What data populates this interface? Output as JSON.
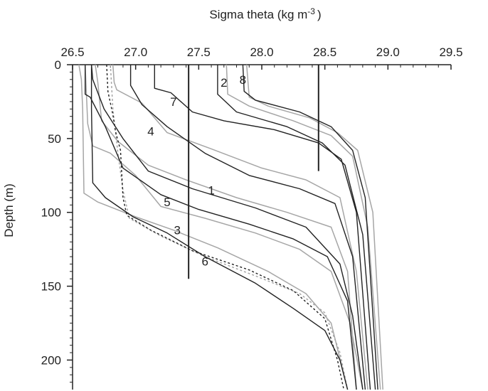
{
  "chart_data": {
    "type": "line",
    "title": "",
    "xlabel": "Sigma theta (kg m",
    "xlabel_sup": "-3",
    "xlabel_close": ")",
    "ylabel": "Depth (m)",
    "x_axis_position": "top",
    "y_inverted": true,
    "xlim": [
      26.5,
      29.5
    ],
    "ylim": [
      0,
      220
    ],
    "xticks": [
      "26.5",
      "27.0",
      "27.5",
      "28.0",
      "28.5",
      "29.0",
      "29.5"
    ],
    "yticks": [
      "0",
      "50",
      "100",
      "150",
      "200"
    ],
    "grid": false,
    "legend": "none",
    "colors": {
      "dark": "#222222",
      "light": "#a6a6a6"
    },
    "reference_lines": [
      {
        "x": 27.42,
        "y_range": [
          0,
          145
        ]
      },
      {
        "x": 28.45,
        "y_range": [
          0,
          72
        ]
      }
    ],
    "profile_labels": [
      {
        "text": "2",
        "x": 27.7,
        "y": 12
      },
      {
        "text": "8",
        "x": 27.85,
        "y": 10
      },
      {
        "text": "7",
        "x": 27.3,
        "y": 25
      },
      {
        "text": "4",
        "x": 27.12,
        "y": 45
      },
      {
        "text": "1",
        "x": 27.6,
        "y": 85
      },
      {
        "text": "5",
        "x": 27.25,
        "y": 93
      },
      {
        "text": "3",
        "x": 27.33,
        "y": 112
      },
      {
        "text": "6",
        "x": 27.55,
        "y": 133
      }
    ],
    "series": [
      {
        "color": "dark",
        "dash": false,
        "points": [
          [
            26.65,
            0
          ],
          [
            26.65,
            30
          ],
          [
            26.66,
            80
          ],
          [
            26.76,
            90
          ],
          [
            26.98,
            103
          ],
          [
            27.25,
            114
          ],
          [
            27.55,
            130
          ],
          [
            27.95,
            148
          ],
          [
            28.25,
            165
          ],
          [
            28.5,
            180
          ],
          [
            28.62,
            200
          ],
          [
            28.68,
            220
          ]
        ]
      },
      {
        "color": "dark",
        "dash": false,
        "points": [
          [
            26.6,
            0
          ],
          [
            26.6,
            20
          ],
          [
            26.64,
            22
          ],
          [
            26.76,
            42
          ],
          [
            26.9,
            70
          ],
          [
            27.2,
            88
          ],
          [
            27.5,
            98
          ],
          [
            27.9,
            108
          ],
          [
            28.25,
            118
          ],
          [
            28.52,
            130
          ],
          [
            28.68,
            160
          ],
          [
            28.75,
            220
          ]
        ]
      },
      {
        "color": "dark",
        "dash": false,
        "points": [
          [
            26.65,
            0
          ],
          [
            26.66,
            10
          ],
          [
            26.75,
            30
          ],
          [
            26.9,
            50
          ],
          [
            27.1,
            72
          ],
          [
            27.45,
            84
          ],
          [
            27.95,
            97
          ],
          [
            28.35,
            110
          ],
          [
            28.62,
            135
          ],
          [
            28.72,
            170
          ],
          [
            28.8,
            220
          ]
        ]
      },
      {
        "color": "dark",
        "dash": false,
        "points": [
          [
            26.96,
            0
          ],
          [
            26.96,
            14
          ],
          [
            27.05,
            27
          ],
          [
            27.25,
            42
          ],
          [
            27.55,
            60
          ],
          [
            27.9,
            75
          ],
          [
            28.3,
            84
          ],
          [
            28.58,
            94
          ],
          [
            28.72,
            130
          ],
          [
            28.82,
            220
          ]
        ]
      },
      {
        "color": "dark",
        "dash": false,
        "points": [
          [
            27.15,
            0
          ],
          [
            27.15,
            16
          ],
          [
            27.28,
            19
          ],
          [
            27.45,
            32
          ],
          [
            27.7,
            38
          ],
          [
            28.1,
            44
          ],
          [
            28.45,
            53
          ],
          [
            28.63,
            64
          ],
          [
            28.75,
            100
          ],
          [
            28.86,
            220
          ]
        ]
      },
      {
        "color": "dark",
        "dash": false,
        "points": [
          [
            27.65,
            0
          ],
          [
            27.65,
            20
          ],
          [
            27.8,
            32
          ],
          [
            28.2,
            42
          ],
          [
            28.48,
            53
          ],
          [
            28.66,
            68
          ],
          [
            28.8,
            115
          ],
          [
            28.9,
            220
          ]
        ]
      },
      {
        "color": "dark",
        "dash": false,
        "points": [
          [
            27.85,
            0
          ],
          [
            27.86,
            18
          ],
          [
            27.95,
            24
          ],
          [
            28.3,
            32
          ],
          [
            28.55,
            42
          ],
          [
            28.72,
            58
          ],
          [
            28.82,
            90
          ],
          [
            28.92,
            220
          ]
        ]
      },
      {
        "color": "dark",
        "dash": true,
        "points": [
          [
            26.77,
            0
          ],
          [
            26.78,
            18
          ],
          [
            26.82,
            34
          ],
          [
            26.84,
            45
          ],
          [
            26.88,
            58
          ],
          [
            26.9,
            90
          ],
          [
            26.93,
            102
          ],
          [
            27.12,
            112
          ],
          [
            27.45,
            126
          ],
          [
            27.9,
            139
          ],
          [
            28.25,
            153
          ],
          [
            28.5,
            172
          ],
          [
            28.6,
            200
          ],
          [
            28.65,
            220
          ]
        ]
      },
      {
        "color": "light",
        "dash": false,
        "points": [
          [
            26.55,
            0
          ],
          [
            26.57,
            10
          ],
          [
            26.58,
            30
          ],
          [
            26.59,
            87
          ],
          [
            26.7,
            93
          ],
          [
            27.0,
            103
          ],
          [
            27.3,
            112
          ],
          [
            27.65,
            124
          ],
          [
            28.05,
            140
          ],
          [
            28.35,
            155
          ],
          [
            28.55,
            175
          ],
          [
            28.68,
            220
          ]
        ]
      },
      {
        "color": "light",
        "dash": false,
        "points": [
          [
            26.68,
            0
          ],
          [
            26.7,
            12
          ],
          [
            26.73,
            38
          ],
          [
            26.86,
            52
          ],
          [
            27.1,
            68
          ],
          [
            27.4,
            78
          ],
          [
            27.8,
            90
          ],
          [
            28.2,
            100
          ],
          [
            28.55,
            110
          ],
          [
            28.68,
            140
          ],
          [
            28.75,
            220
          ]
        ]
      },
      {
        "color": "light",
        "dash": false,
        "points": [
          [
            26.82,
            0
          ],
          [
            26.83,
            12
          ],
          [
            26.85,
            17
          ],
          [
            27.05,
            26
          ],
          [
            27.25,
            46
          ],
          [
            27.6,
            57
          ],
          [
            28.0,
            70
          ],
          [
            28.35,
            78
          ],
          [
            28.62,
            90
          ],
          [
            28.75,
            140
          ],
          [
            28.84,
            220
          ]
        ]
      },
      {
        "color": "light",
        "dash": false,
        "points": [
          [
            27.72,
            0
          ],
          [
            27.73,
            20
          ],
          [
            27.9,
            28
          ],
          [
            28.25,
            38
          ],
          [
            28.55,
            48
          ],
          [
            28.72,
            62
          ],
          [
            28.84,
            110
          ],
          [
            28.94,
            220
          ]
        ]
      },
      {
        "color": "light",
        "dash": false,
        "points": [
          [
            27.88,
            0
          ],
          [
            27.9,
            22
          ],
          [
            28.05,
            28
          ],
          [
            28.38,
            36
          ],
          [
            28.6,
            46
          ],
          [
            28.76,
            58
          ],
          [
            28.88,
            100
          ],
          [
            28.96,
            220
          ]
        ]
      },
      {
        "color": "light",
        "dash": false,
        "points": [
          [
            26.6,
            0
          ],
          [
            26.62,
            40
          ],
          [
            26.66,
            55
          ],
          [
            26.8,
            60
          ],
          [
            27.0,
            75
          ],
          [
            27.2,
            96
          ],
          [
            27.55,
            104
          ],
          [
            27.95,
            114
          ],
          [
            28.3,
            125
          ],
          [
            28.55,
            140
          ],
          [
            28.7,
            175
          ],
          [
            28.8,
            220
          ]
        ]
      },
      {
        "color": "light",
        "dash": true,
        "points": [
          [
            26.8,
            0
          ],
          [
            26.82,
            30
          ],
          [
            26.86,
            60
          ],
          [
            26.9,
            85
          ],
          [
            26.95,
            104
          ],
          [
            27.2,
            116
          ],
          [
            27.55,
            130
          ],
          [
            27.95,
            143
          ],
          [
            28.3,
            155
          ],
          [
            28.5,
            168
          ],
          [
            28.62,
            195
          ],
          [
            28.68,
            220
          ]
        ]
      }
    ]
  }
}
